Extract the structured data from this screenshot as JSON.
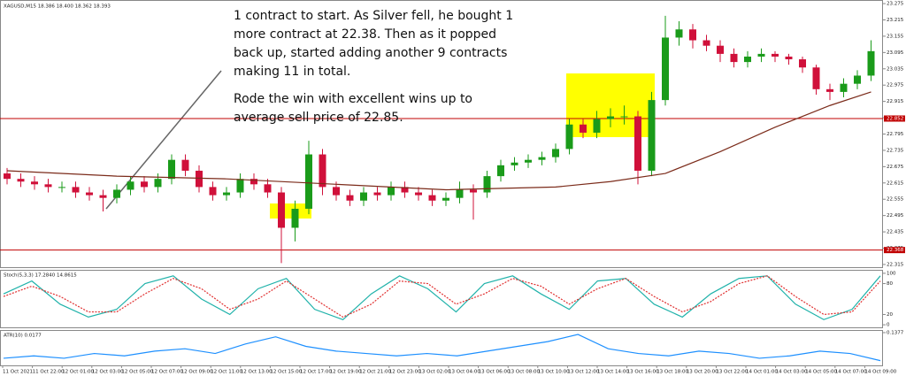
{
  "annotation": [
    "1 contract to start. As Silver fell, he bought 1 more contract at 22.38. Then as it popped back up, started adding another 9 contracts making 11 in total.",
    "Rode the win with excellent wins up to average sell price of 22.85."
  ],
  "chart_data": {
    "type": "candlestick",
    "title": "XAGUSD,M15 18.386 18.400 18.362 18.393",
    "up_color": "#1a9b1a",
    "down_color": "#d0103a",
    "ohlc": [
      [
        22.65,
        22.67,
        22.61,
        22.63
      ],
      [
        22.63,
        22.65,
        22.6,
        22.62
      ],
      [
        22.62,
        22.64,
        22.59,
        22.61
      ],
      [
        22.61,
        22.63,
        22.58,
        22.6
      ],
      [
        22.6,
        22.62,
        22.58,
        22.6
      ],
      [
        22.6,
        22.62,
        22.56,
        22.58
      ],
      [
        22.58,
        22.6,
        22.55,
        22.57
      ],
      [
        22.57,
        22.59,
        22.51,
        22.56
      ],
      [
        22.56,
        22.61,
        22.54,
        22.59
      ],
      [
        22.59,
        22.64,
        22.57,
        22.62
      ],
      [
        22.62,
        22.64,
        22.58,
        22.6
      ],
      [
        22.6,
        22.65,
        22.58,
        22.63
      ],
      [
        22.63,
        22.72,
        22.61,
        22.7
      ],
      [
        22.7,
        22.72,
        22.64,
        22.66
      ],
      [
        22.66,
        22.68,
        22.58,
        22.6
      ],
      [
        22.6,
        22.62,
        22.55,
        22.57
      ],
      [
        22.57,
        22.6,
        22.55,
        22.58
      ],
      [
        22.58,
        22.65,
        22.56,
        22.63
      ],
      [
        22.63,
        22.65,
        22.59,
        22.61
      ],
      [
        22.61,
        22.63,
        22.56,
        22.58
      ],
      [
        22.58,
        22.6,
        22.32,
        22.45
      ],
      [
        22.45,
        22.55,
        22.4,
        22.52
      ],
      [
        22.52,
        22.77,
        22.5,
        22.72
      ],
      [
        22.72,
        22.74,
        22.57,
        22.6
      ],
      [
        22.6,
        22.62,
        22.55,
        22.57
      ],
      [
        22.57,
        22.59,
        22.53,
        22.55
      ],
      [
        22.55,
        22.6,
        22.53,
        22.58
      ],
      [
        22.58,
        22.6,
        22.55,
        22.57
      ],
      [
        22.57,
        22.62,
        22.55,
        22.6
      ],
      [
        22.6,
        22.62,
        22.56,
        22.58
      ],
      [
        22.58,
        22.6,
        22.55,
        22.57
      ],
      [
        22.57,
        22.59,
        22.53,
        22.55
      ],
      [
        22.55,
        22.58,
        22.53,
        22.56
      ],
      [
        22.56,
        22.62,
        22.54,
        22.59
      ],
      [
        22.59,
        22.61,
        22.48,
        22.58
      ],
      [
        22.58,
        22.66,
        22.56,
        22.64
      ],
      [
        22.64,
        22.7,
        22.62,
        22.68
      ],
      [
        22.68,
        22.71,
        22.66,
        22.69
      ],
      [
        22.69,
        22.72,
        22.67,
        22.7
      ],
      [
        22.7,
        22.73,
        22.68,
        22.71
      ],
      [
        22.71,
        22.76,
        22.69,
        22.74
      ],
      [
        22.74,
        22.85,
        22.72,
        22.83
      ],
      [
        22.83,
        22.85,
        22.78,
        22.8
      ],
      [
        22.8,
        22.88,
        22.78,
        22.85
      ],
      [
        22.85,
        22.89,
        22.82,
        22.86
      ],
      [
        22.86,
        22.9,
        22.83,
        22.86
      ],
      [
        22.86,
        22.88,
        22.61,
        22.66
      ],
      [
        22.66,
        22.95,
        22.64,
        22.92
      ],
      [
        22.92,
        23.23,
        22.9,
        23.15
      ],
      [
        23.15,
        23.21,
        23.12,
        23.18
      ],
      [
        23.18,
        23.2,
        23.11,
        23.14
      ],
      [
        23.14,
        23.16,
        23.1,
        23.12
      ],
      [
        23.12,
        23.14,
        23.06,
        23.09
      ],
      [
        23.09,
        23.11,
        23.04,
        23.06
      ],
      [
        23.06,
        23.1,
        23.04,
        23.08
      ],
      [
        23.08,
        23.11,
        23.06,
        23.09
      ],
      [
        23.09,
        23.1,
        23.06,
        23.08
      ],
      [
        23.08,
        23.09,
        23.05,
        23.07
      ],
      [
        23.07,
        23.08,
        23.02,
        23.04
      ],
      [
        23.04,
        23.05,
        22.94,
        22.96
      ],
      [
        22.96,
        22.98,
        22.92,
        22.95
      ],
      [
        22.95,
        23.0,
        22.93,
        22.98
      ],
      [
        22.98,
        23.03,
        22.96,
        23.01
      ],
      [
        23.01,
        23.14,
        22.99,
        23.1
      ]
    ],
    "ylim": [
      22.305,
      23.285
    ],
    "yticks": [
      23.275,
      23.215,
      23.155,
      23.095,
      23.035,
      22.975,
      22.915,
      22.855,
      22.795,
      22.735,
      22.675,
      22.615,
      22.555,
      22.495,
      22.435,
      22.375,
      22.315
    ],
    "levels": [
      22.852,
      22.368
    ],
    "level_color": "#c00000",
    "ma": {
      "color": "#7b2b1a",
      "x": [
        0,
        8,
        16,
        24,
        32,
        40,
        44,
        48,
        52,
        56,
        60,
        63
      ],
      "values": [
        22.66,
        22.64,
        22.63,
        22.61,
        22.59,
        22.6,
        22.62,
        22.65,
        22.73,
        22.82,
        22.9,
        22.95
      ]
    },
    "stoch": {
      "label": "Stoch(5,3,3) 17.2840 14.8615",
      "ylim": [
        -5,
        105
      ],
      "yticks": [
        100,
        80,
        20,
        0
      ],
      "k_color": "#20b2aa",
      "d_color": "#e03030",
      "k": [
        60,
        85,
        40,
        15,
        30,
        80,
        95,
        50,
        20,
        70,
        90,
        30,
        10,
        60,
        95,
        70,
        25,
        80,
        95,
        60,
        30,
        85,
        90,
        40,
        15,
        60,
        90,
        95,
        40,
        10,
        30,
        95
      ],
      "d": [
        55,
        75,
        55,
        25,
        25,
        60,
        90,
        70,
        30,
        50,
        85,
        50,
        15,
        40,
        85,
        80,
        40,
        60,
        90,
        75,
        40,
        70,
        90,
        55,
        25,
        45,
        80,
        95,
        55,
        20,
        25,
        85
      ]
    },
    "atr": {
      "label": "ATR(10) 0.0177",
      "ylim": [
        0,
        0.145
      ],
      "yticks": [
        0.1377
      ],
      "color": "#1e90ff",
      "values": [
        0.03,
        0.04,
        0.03,
        0.05,
        0.04,
        0.06,
        0.07,
        0.05,
        0.09,
        0.12,
        0.08,
        0.06,
        0.05,
        0.04,
        0.05,
        0.04,
        0.06,
        0.08,
        0.1,
        0.13,
        0.07,
        0.05,
        0.04,
        0.06,
        0.05,
        0.03,
        0.04,
        0.06,
        0.05,
        0.02
      ]
    },
    "xlabels": [
      "11 Oct 2021",
      "11 Oct 22:00",
      "12 Oct 01:00",
      "12 Oct 03:00",
      "12 Oct 05:00",
      "12 Oct 07:00",
      "12 Oct 09:00",
      "12 Oct 11:00",
      "12 Oct 13:00",
      "12 Oct 15:00",
      "12 Oct 17:00",
      "12 Oct 19:00",
      "12 Oct 21:00",
      "12 Oct 23:00",
      "13 Oct 02:00",
      "13 Oct 04:00",
      "13 Oct 06:00",
      "13 Oct 08:00",
      "13 Oct 10:00",
      "13 Oct 12:00",
      "13 Oct 14:00",
      "13 Oct 16:00",
      "13 Oct 18:00",
      "13 Oct 20:00",
      "13 Oct 22:00",
      "14 Oct 01:00",
      "14 Oct 03:00",
      "14 Oct 05:00",
      "14 Oct 07:00",
      "14 Oct 09:00"
    ]
  }
}
